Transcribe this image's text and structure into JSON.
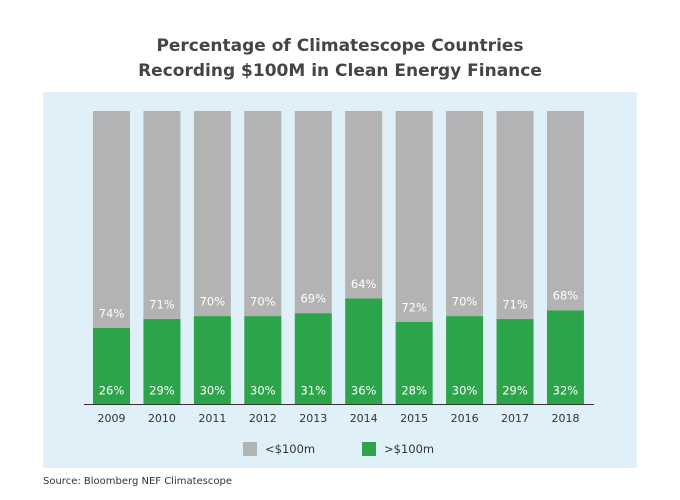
{
  "chart_data": {
    "type": "stacked-bar",
    "title": "Percentage of Climatescope Countries\nRecording $100M in Clean Energy Finance",
    "categories": [
      "2009",
      "2010",
      "2011",
      "2012",
      "2013",
      "2014",
      "2015",
      "2016",
      "2017",
      "2018"
    ],
    "series": [
      {
        "name": "<$100m",
        "color": "#b3b3b3",
        "values": [
          74,
          71,
          70,
          70,
          69,
          64,
          72,
          70,
          71,
          68
        ],
        "value_labels": [
          "74%",
          "71%",
          "70%",
          "70%",
          "69%",
          "64%",
          "72%",
          "70%",
          "71%",
          "68%"
        ]
      },
      {
        "name": ">$100m",
        "color": "#2ca44a",
        "values": [
          26,
          29,
          30,
          30,
          31,
          36,
          28,
          30,
          29,
          32
        ],
        "value_labels": [
          "26%",
          "29%",
          "30%",
          "30%",
          "31%",
          "36%",
          "28%",
          "30%",
          "29%",
          "32%"
        ]
      }
    ],
    "ylim": [
      0,
      100
    ],
    "source": "Source: Bloomberg NEF Climatescope"
  }
}
